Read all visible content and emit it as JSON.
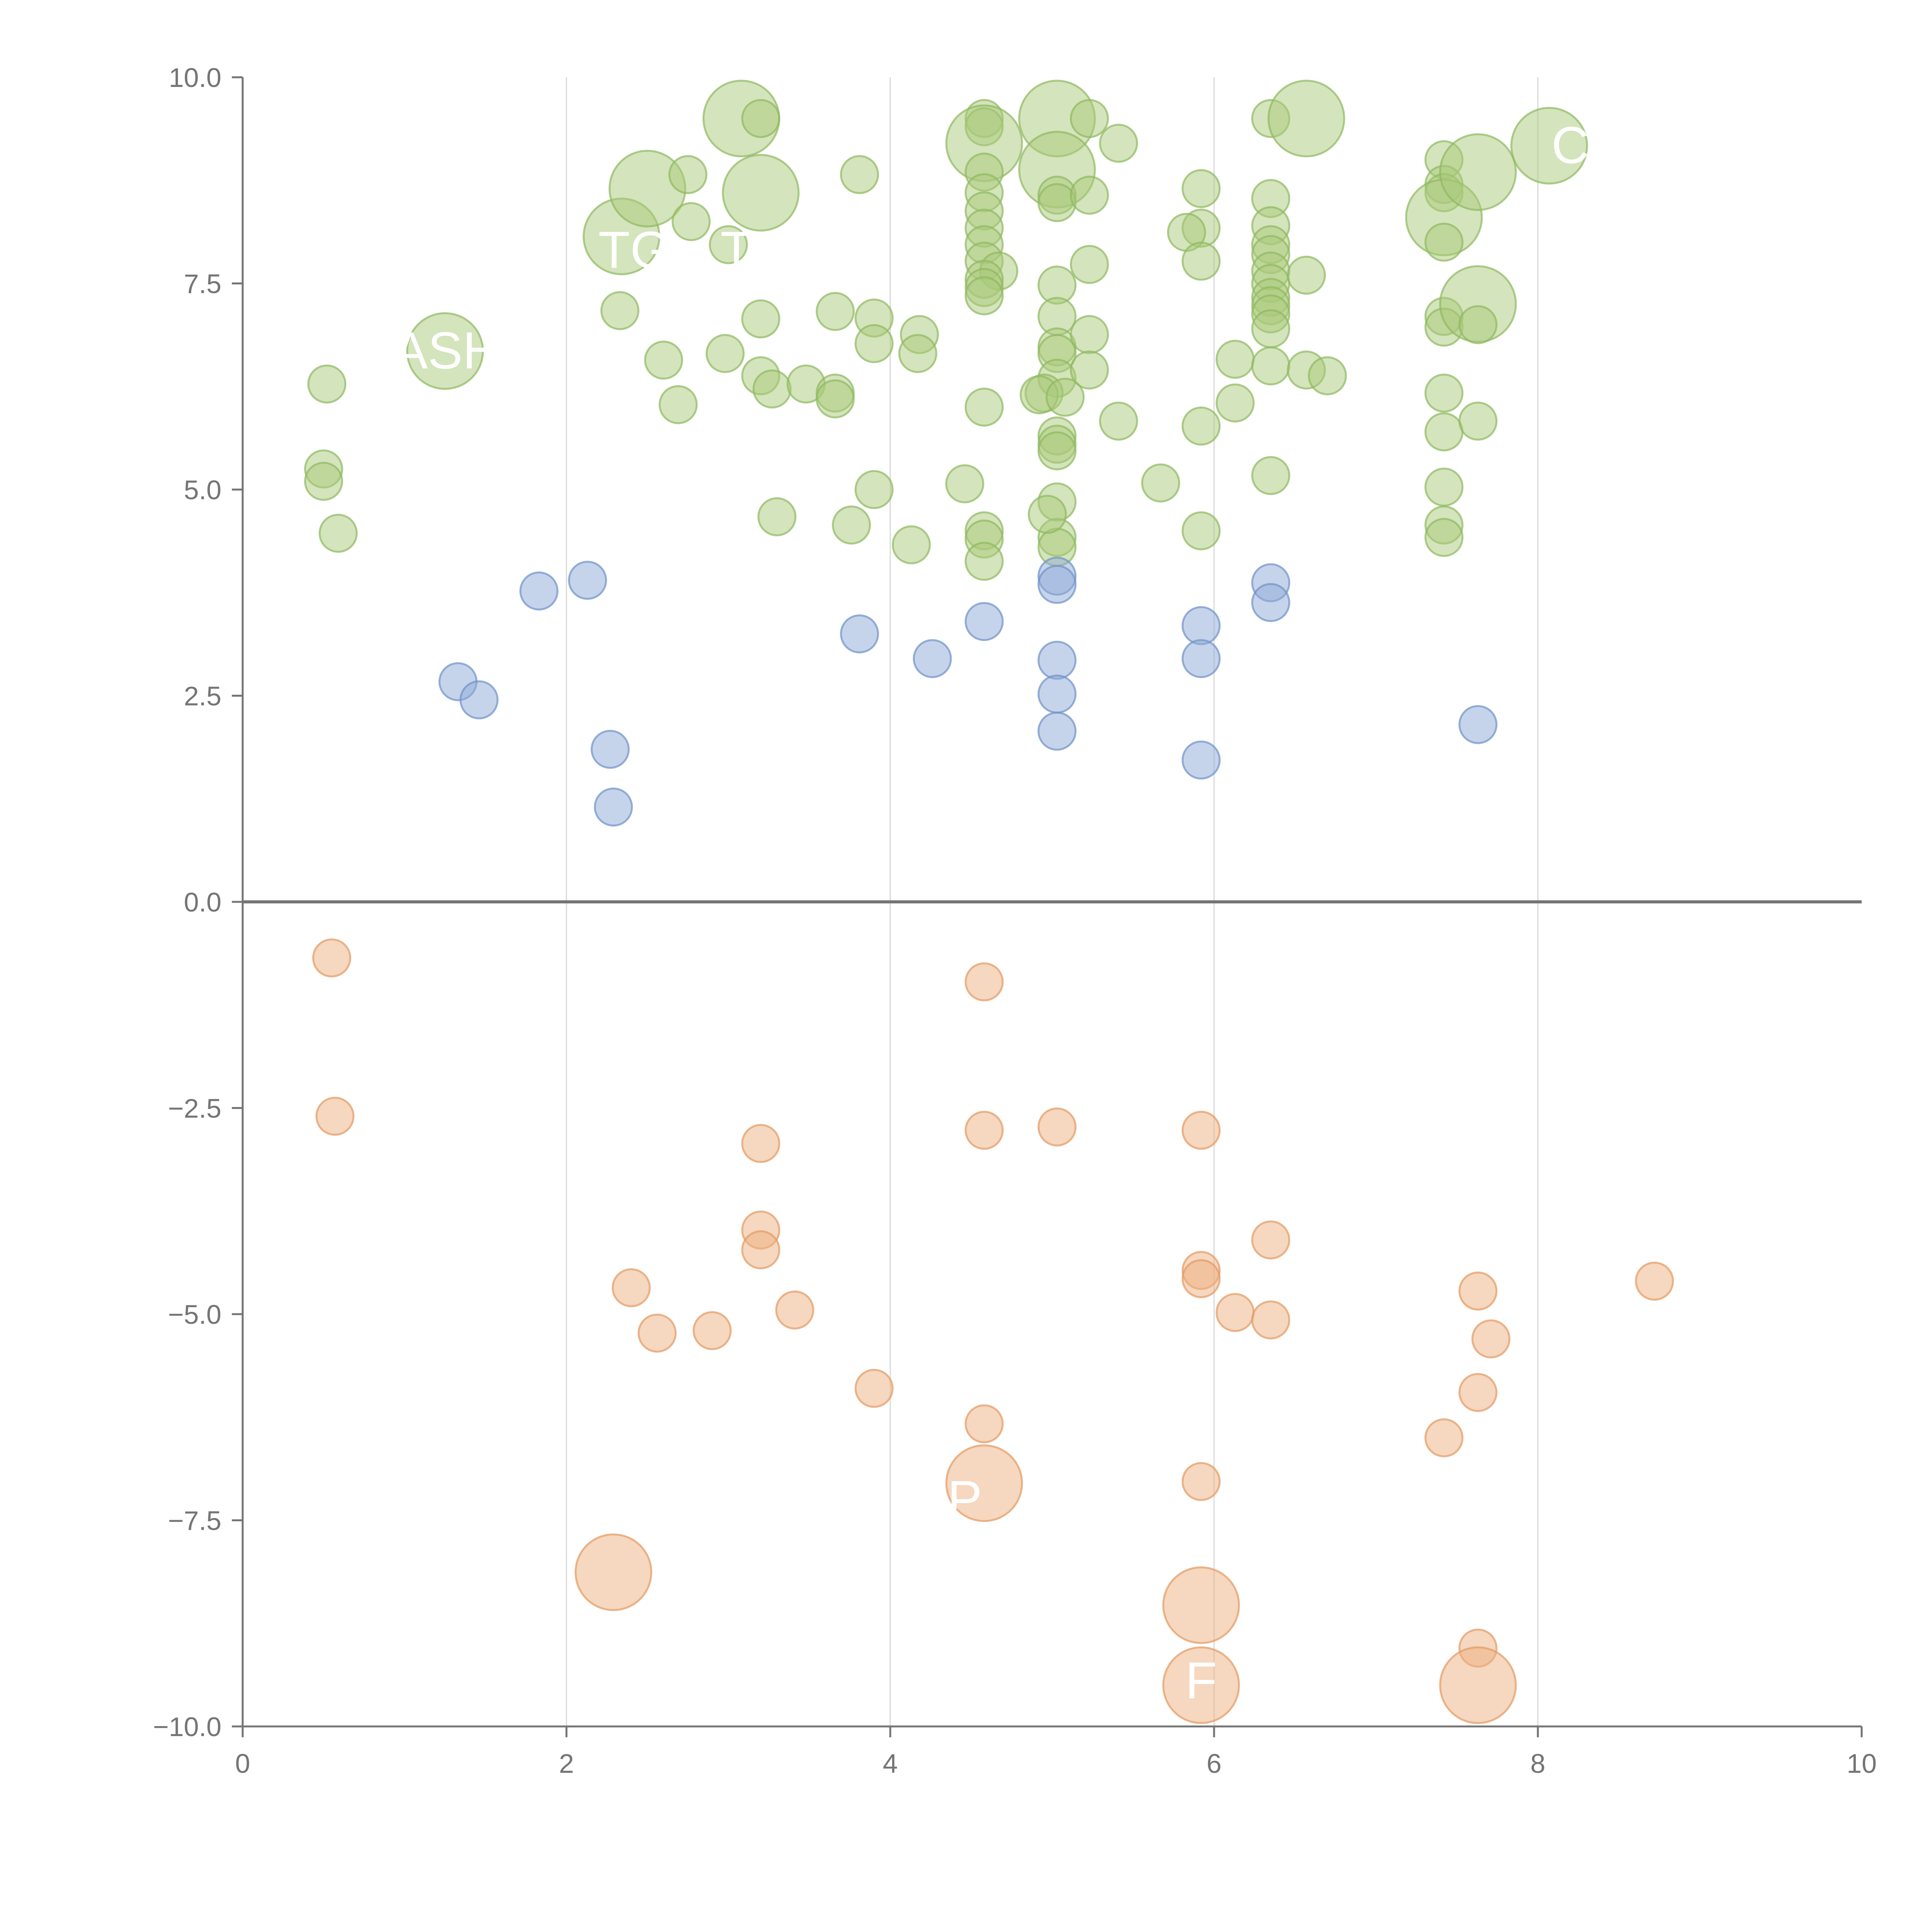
{
  "chart_data": {
    "type": "scatter",
    "title": "",
    "xlabel": "",
    "ylabel": "",
    "xlim": [
      0,
      10
    ],
    "ylim": [
      -10,
      10
    ],
    "x_ticks": [
      0,
      2,
      4,
      6,
      8,
      10
    ],
    "x_tick_labels": [
      "0",
      "2",
      "4",
      "6",
      "8",
      "10"
    ],
    "y_ticks": [
      10,
      7.5,
      5,
      2.5,
      0,
      -2.5,
      -5,
      -7.5,
      -10
    ],
    "y_tick_labels": [
      "10.0",
      "7.5",
      "5.0",
      "2.5",
      "0.0",
      "−2.5",
      "−5.0",
      "−7.5",
      "−10.0"
    ],
    "vertical_gridlines": [
      2,
      4,
      6,
      8
    ],
    "zero_line": 0,
    "series": [
      {
        "name": "green",
        "fill": "#a9c97a",
        "stroke": "#8fb860",
        "points": [
          [
            0.52,
            6.28,
            1
          ],
          [
            0.5,
            5.25,
            1
          ],
          [
            0.5,
            5.1,
            1
          ],
          [
            0.59,
            4.47,
            1
          ],
          [
            1.25,
            6.68,
            2
          ],
          [
            2.34,
            8.07,
            2
          ],
          [
            2.5,
            8.65,
            2
          ],
          [
            2.75,
            8.82,
            1
          ],
          [
            2.77,
            8.25,
            1
          ],
          [
            2.33,
            7.17,
            1
          ],
          [
            2.6,
            6.57,
            1
          ],
          [
            2.69,
            6.03,
            1
          ],
          [
            3.08,
            9.5,
            2
          ],
          [
            3.2,
            9.5,
            1
          ],
          [
            3.2,
            8.6,
            2
          ],
          [
            3.0,
            7.97,
            1
          ],
          [
            2.98,
            6.65,
            1
          ],
          [
            3.2,
            7.07,
            1
          ],
          [
            3.2,
            6.38,
            1
          ],
          [
            3.27,
            6.22,
            1
          ],
          [
            3.48,
            6.28,
            1
          ],
          [
            3.66,
            6.17,
            1
          ],
          [
            3.66,
            6.1,
            1
          ],
          [
            3.66,
            7.16,
            1
          ],
          [
            3.9,
            7.08,
            1
          ],
          [
            3.9,
            6.77,
            1
          ],
          [
            3.3,
            4.67,
            1
          ],
          [
            3.81,
            8.82,
            1
          ],
          [
            3.9,
            5.0,
            1
          ],
          [
            3.76,
            4.57,
            1
          ],
          [
            4.18,
            6.88,
            1
          ],
          [
            4.17,
            6.65,
            1
          ],
          [
            4.13,
            4.33,
            1
          ],
          [
            4.46,
            5.07,
            1
          ],
          [
            4.58,
            9.5,
            1
          ],
          [
            4.58,
            9.4,
            1
          ],
          [
            4.58,
            9.2,
            2
          ],
          [
            4.58,
            8.85,
            1
          ],
          [
            4.58,
            8.6,
            1
          ],
          [
            4.58,
            8.38,
            1
          ],
          [
            4.58,
            8.17,
            1
          ],
          [
            4.58,
            7.97,
            1
          ],
          [
            4.58,
            7.77,
            1
          ],
          [
            4.67,
            7.65,
            1
          ],
          [
            4.58,
            7.55,
            1
          ],
          [
            4.58,
            7.45,
            1
          ],
          [
            4.58,
            7.35,
            1
          ],
          [
            4.58,
            6.0,
            1
          ],
          [
            4.58,
            4.5,
            1
          ],
          [
            4.58,
            4.4,
            1
          ],
          [
            4.58,
            4.13,
            1
          ],
          [
            5.03,
            9.5,
            2
          ],
          [
            5.03,
            8.88,
            2
          ],
          [
            5.03,
            8.57,
            1
          ],
          [
            5.03,
            8.48,
            1
          ],
          [
            5.03,
            7.48,
            1
          ],
          [
            5.03,
            7.1,
            1
          ],
          [
            5.03,
            6.73,
            1
          ],
          [
            5.03,
            6.65,
            1
          ],
          [
            5.03,
            6.35,
            1
          ],
          [
            5.03,
            5.65,
            1
          ],
          [
            5.03,
            5.55,
            1
          ],
          [
            5.03,
            5.47,
            1
          ],
          [
            5.03,
            4.85,
            1
          ],
          [
            5.03,
            4.42,
            1
          ],
          [
            5.03,
            4.3,
            1
          ],
          [
            4.95,
            6.17,
            1
          ],
          [
            4.92,
            6.15,
            1
          ],
          [
            5.08,
            6.12,
            1
          ],
          [
            4.97,
            4.7,
            1
          ],
          [
            5.23,
            9.5,
            1
          ],
          [
            5.41,
            9.2,
            1
          ],
          [
            5.23,
            8.57,
            1
          ],
          [
            5.23,
            7.73,
            1
          ],
          [
            5.23,
            6.88,
            1
          ],
          [
            5.23,
            6.45,
            1
          ],
          [
            5.41,
            5.83,
            1
          ],
          [
            5.67,
            5.08,
            1
          ],
          [
            5.92,
            8.65,
            1
          ],
          [
            5.92,
            8.17,
            1
          ],
          [
            5.83,
            8.12,
            1
          ],
          [
            5.92,
            7.77,
            1
          ],
          [
            5.92,
            5.77,
            1
          ],
          [
            5.92,
            4.5,
            1
          ],
          [
            6.13,
            6.58,
            1
          ],
          [
            6.13,
            6.05,
            1
          ],
          [
            6.35,
            9.5,
            1
          ],
          [
            6.57,
            9.5,
            2
          ],
          [
            6.35,
            8.53,
            1
          ],
          [
            6.35,
            8.2,
            1
          ],
          [
            6.35,
            7.97,
            1
          ],
          [
            6.35,
            7.85,
            1
          ],
          [
            6.35,
            7.65,
            1
          ],
          [
            6.35,
            7.5,
            1
          ],
          [
            6.35,
            7.33,
            1
          ],
          [
            6.35,
            7.23,
            1
          ],
          [
            6.35,
            7.13,
            1
          ],
          [
            6.35,
            6.95,
            1
          ],
          [
            6.35,
            6.5,
            1
          ],
          [
            6.35,
            5.17,
            1
          ],
          [
            6.57,
            7.6,
            1
          ],
          [
            6.57,
            6.45,
            1
          ],
          [
            6.7,
            6.38,
            1
          ],
          [
            7.42,
            9.0,
            1
          ],
          [
            7.42,
            8.7,
            1
          ],
          [
            7.42,
            8.6,
            1
          ],
          [
            7.42,
            8.3,
            2
          ],
          [
            7.42,
            8.0,
            1
          ],
          [
            7.42,
            7.1,
            1
          ],
          [
            7.42,
            6.97,
            1
          ],
          [
            7.42,
            6.17,
            1
          ],
          [
            7.42,
            5.7,
            1
          ],
          [
            7.42,
            5.03,
            1
          ],
          [
            7.42,
            4.57,
            1
          ],
          [
            7.42,
            4.42,
            1
          ],
          [
            7.63,
            8.85,
            2
          ],
          [
            7.63,
            7.25,
            2
          ],
          [
            7.63,
            7.0,
            1
          ],
          [
            7.63,
            5.83,
            1
          ],
          [
            8.07,
            9.17,
            2
          ]
        ]
      },
      {
        "name": "blue",
        "fill": "#8eaad8",
        "stroke": "#6f92c8",
        "points": [
          [
            1.33,
            2.67,
            1
          ],
          [
            1.46,
            2.45,
            1
          ],
          [
            1.83,
            3.77,
            1
          ],
          [
            2.13,
            3.9,
            1
          ],
          [
            2.27,
            1.85,
            1
          ],
          [
            2.29,
            1.15,
            1
          ],
          [
            3.81,
            3.25,
            1
          ],
          [
            4.26,
            2.95,
            1
          ],
          [
            4.58,
            3.4,
            1
          ],
          [
            5.03,
            3.95,
            1
          ],
          [
            5.03,
            3.85,
            1
          ],
          [
            5.03,
            2.93,
            1
          ],
          [
            5.03,
            2.52,
            1
          ],
          [
            5.03,
            2.07,
            1
          ],
          [
            5.92,
            3.35,
            1
          ],
          [
            5.92,
            2.95,
            1
          ],
          [
            5.92,
            1.72,
            1
          ],
          [
            6.35,
            3.87,
            1
          ],
          [
            6.35,
            3.63,
            1
          ],
          [
            7.63,
            2.15,
            1
          ]
        ]
      },
      {
        "name": "orange",
        "fill": "#eeb080",
        "stroke": "#e39a62",
        "points": [
          [
            0.55,
            -0.68,
            1
          ],
          [
            0.57,
            -2.6,
            1
          ],
          [
            2.29,
            -8.13,
            2
          ],
          [
            2.4,
            -4.68,
            1
          ],
          [
            2.56,
            -5.23,
            1
          ],
          [
            2.9,
            -5.2,
            1
          ],
          [
            3.2,
            -2.93,
            1
          ],
          [
            3.2,
            -3.98,
            1
          ],
          [
            3.2,
            -4.22,
            1
          ],
          [
            3.41,
            -4.95,
            1
          ],
          [
            3.9,
            -5.9,
            1
          ],
          [
            4.58,
            -0.97,
            1
          ],
          [
            4.58,
            -2.77,
            1
          ],
          [
            4.58,
            -6.33,
            1
          ],
          [
            4.58,
            -7.05,
            2
          ],
          [
            5.03,
            -2.73,
            1
          ],
          [
            5.92,
            -2.77,
            1
          ],
          [
            5.92,
            -4.47,
            1
          ],
          [
            5.92,
            -4.57,
            1
          ],
          [
            5.92,
            -7.03,
            1
          ],
          [
            5.92,
            -8.53,
            2
          ],
          [
            5.92,
            -9.5,
            2
          ],
          [
            6.13,
            -4.98,
            1
          ],
          [
            6.35,
            -4.1,
            1
          ],
          [
            6.35,
            -5.07,
            1
          ],
          [
            7.42,
            -6.5,
            1
          ],
          [
            7.63,
            -4.72,
            1
          ],
          [
            7.63,
            -5.95,
            1
          ],
          [
            7.63,
            -9.05,
            1
          ],
          [
            7.63,
            -9.5,
            2
          ],
          [
            7.71,
            -5.3,
            1
          ],
          [
            8.72,
            -4.6,
            1
          ]
        ]
      }
    ],
    "size_classes": [
      "small",
      "large"
    ],
    "annotations": [
      {
        "text": "ASH",
        "x": 1.26,
        "y": 6.68
      },
      {
        "text": "TG",
        "x": 2.42,
        "y": 7.9
      },
      {
        "text": "T",
        "x": 3.05,
        "y": 7.9
      },
      {
        "text": "C",
        "x": 8.2,
        "y": 9.17
      },
      {
        "text": "F",
        "x": 5.92,
        "y": -9.45
      },
      {
        "text": "P",
        "x": 4.46,
        "y": -7.25
      }
    ]
  }
}
